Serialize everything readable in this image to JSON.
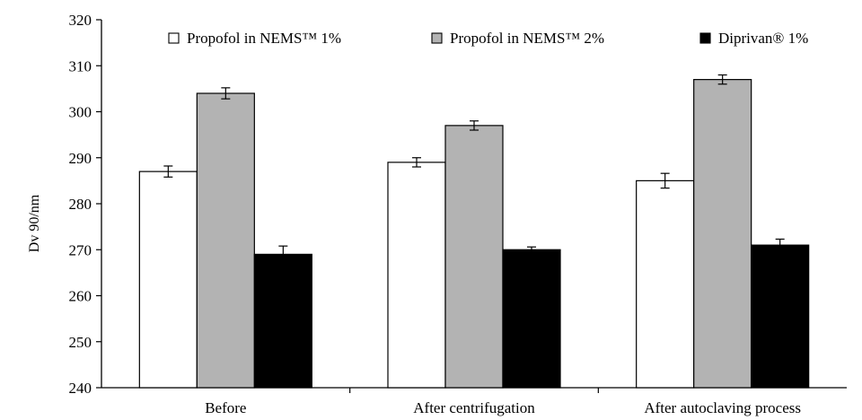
{
  "chart_data": {
    "type": "bar",
    "title": "",
    "xlabel": "",
    "ylabel": "Dv 90/nm",
    "ylim": [
      240,
      320
    ],
    "yticks": [
      "240",
      "250",
      "260",
      "270",
      "280",
      "290",
      "300",
      "310",
      "320"
    ],
    "categories": [
      "Before",
      "After centrifugation",
      "After autoclaving process"
    ],
    "series": [
      {
        "name": "Propofol in NEMS™ 1%",
        "color": "#ffffff",
        "values": [
          287,
          289,
          285
        ],
        "errors": [
          1.2,
          1.0,
          1.6
        ]
      },
      {
        "name": "Propofol in NEMS™ 2%",
        "color": "#b3b3b3",
        "values": [
          304,
          297,
          307
        ],
        "errors": [
          1.2,
          1.0,
          1.0
        ]
      },
      {
        "name": "Diprivan® 1%",
        "color": "#000000",
        "values": [
          269,
          270,
          271
        ],
        "errors": [
          1.8,
          0.6,
          1.3
        ]
      }
    ],
    "legend": "top",
    "grid": false
  }
}
